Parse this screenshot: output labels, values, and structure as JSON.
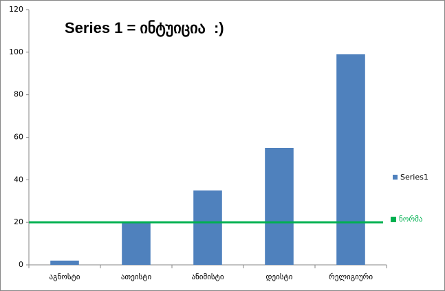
{
  "chart_data": {
    "type": "bar",
    "title": "Series 1 = ინტუიცია  :)",
    "categories": [
      "აგნოსტი",
      "ათეისტი",
      "ანიმისტი",
      "დეისტი",
      "რელიგიური"
    ],
    "series": [
      {
        "name": "Series1",
        "color": "#4f81bd",
        "values": [
          2,
          20,
          35,
          55,
          99
        ]
      }
    ],
    "reference_lines": [
      {
        "name": "ნორმა",
        "value": 20,
        "color": "#00b050"
      }
    ],
    "ylim": [
      0,
      120
    ],
    "yticks": [
      0,
      20,
      40,
      60,
      80,
      100,
      120
    ],
    "legend": "right"
  }
}
